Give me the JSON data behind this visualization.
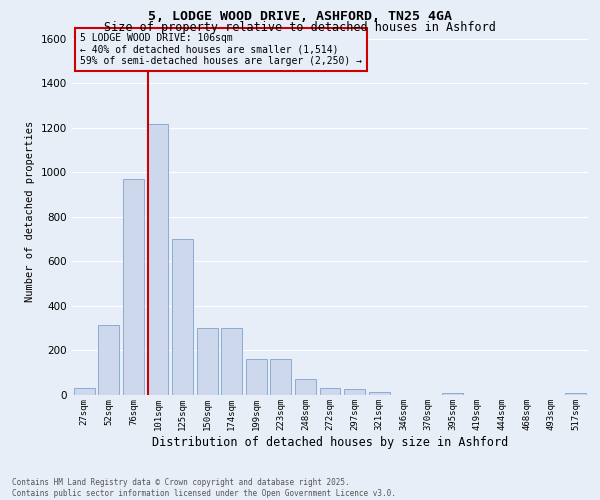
{
  "title_line1": "5, LODGE WOOD DRIVE, ASHFORD, TN25 4GA",
  "title_line2": "Size of property relative to detached houses in Ashford",
  "xlabel": "Distribution of detached houses by size in Ashford",
  "ylabel": "Number of detached properties",
  "categories": [
    "27sqm",
    "52sqm",
    "76sqm",
    "101sqm",
    "125sqm",
    "150sqm",
    "174sqm",
    "199sqm",
    "223sqm",
    "248sqm",
    "272sqm",
    "297sqm",
    "321sqm",
    "346sqm",
    "370sqm",
    "395sqm",
    "419sqm",
    "444sqm",
    "468sqm",
    "493sqm",
    "517sqm"
  ],
  "values": [
    30,
    315,
    970,
    1215,
    700,
    300,
    300,
    160,
    160,
    70,
    30,
    25,
    15,
    0,
    0,
    10,
    0,
    0,
    0,
    0,
    10
  ],
  "bar_color": "#cdd8ed",
  "bar_edge_color": "#8aadd4",
  "vline_x_index": 3,
  "vline_color": "#cc0000",
  "annotation_text": "5 LODGE WOOD DRIVE: 106sqm\n← 40% of detached houses are smaller (1,514)\n59% of semi-detached houses are larger (2,250) →",
  "annotation_box_color": "#cc0000",
  "ylim": [
    0,
    1650
  ],
  "yticks": [
    0,
    200,
    400,
    600,
    800,
    1000,
    1200,
    1400,
    1600
  ],
  "background_color": "#e8eef8",
  "grid_color": "#ffffff",
  "footer_line1": "Contains HM Land Registry data © Crown copyright and database right 2025.",
  "footer_line2": "Contains public sector information licensed under the Open Government Licence v3.0."
}
